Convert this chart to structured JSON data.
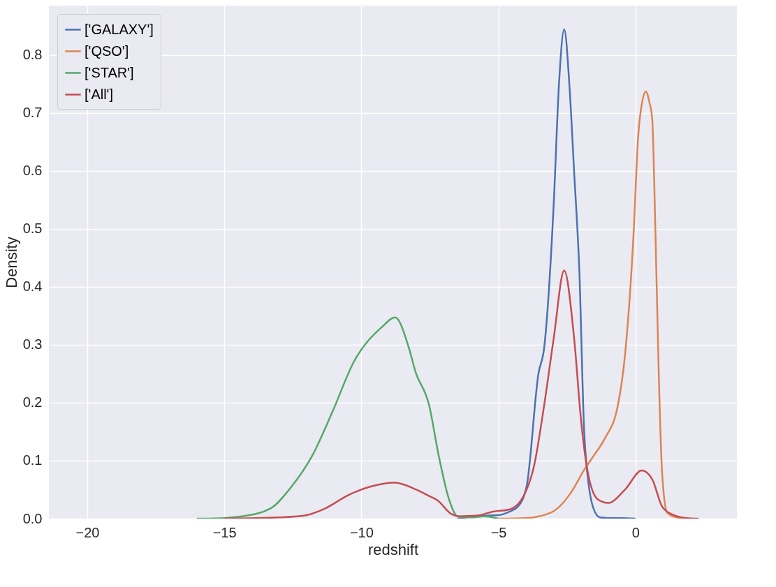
{
  "chart_data": {
    "type": "line",
    "xlabel": "redshift",
    "ylabel": "Density",
    "xlim": [
      -21.4,
      3.7
    ],
    "ylim": [
      0,
      0.885
    ],
    "xticks": [
      {
        "value": -20,
        "label": "−20"
      },
      {
        "value": -15,
        "label": "−15"
      },
      {
        "value": -10,
        "label": "−10"
      },
      {
        "value": -5,
        "label": "−5"
      },
      0
    ],
    "yticks": [
      {
        "value": 0,
        "label": "0.0"
      },
      0.1,
      0.2,
      0.3,
      0.4,
      0.5,
      0.6,
      0.7,
      0.8
    ],
    "grid": true,
    "legend": "top left",
    "marker": "none",
    "line_style": "solid",
    "series": [
      {
        "name": "['GALAXY']",
        "color": "#4c72b0",
        "x": [
          -6.5,
          -6.0,
          -5.5,
          -5.0,
          -4.6,
          -4.3,
          -3.97,
          -3.54,
          -3.33,
          -2.98,
          -2.79,
          -2.6,
          -2.4,
          -2.24,
          -2.05,
          -1.86,
          -1.55,
          -1.3,
          -1.0,
          -0.5,
          0.0
        ],
        "values": [
          0,
          0.003,
          0.005,
          0.006,
          0.012,
          0.02,
          0.056,
          0.25,
          0.295,
          0.545,
          0.75,
          0.844,
          0.74,
          0.6,
          0.43,
          0.14,
          0.02,
          0.002,
          0.001,
          0.001,
          0
        ]
      },
      {
        "name": "['QSO']",
        "color": "#dd8452",
        "x": [
          -5.0,
          -4.0,
          -3.1,
          -2.35,
          -1.86,
          -1.5,
          -1.12,
          -0.64,
          -0.38,
          -0.07,
          0.1,
          0.25,
          0.38,
          0.5,
          0.61,
          0.73,
          0.85,
          0.97,
          1.16,
          1.5,
          2.0
        ],
        "values": [
          0,
          0.001,
          0.01,
          0.045,
          0.085,
          0.11,
          0.138,
          0.196,
          0.283,
          0.49,
          0.66,
          0.72,
          0.737,
          0.72,
          0.69,
          0.49,
          0.25,
          0.08,
          0.01,
          0.002,
          0
        ]
      },
      {
        "name": "['STAR']",
        "color": "#55a868",
        "x": [
          -16.0,
          -15.6,
          -14.35,
          -13.3,
          -12.57,
          -11.8,
          -11.04,
          -10.28,
          -9.26,
          -8.77,
          -8.27,
          -8.03,
          -7.53,
          -7.18,
          -6.8,
          -6.49,
          -6.0,
          -5.5,
          -5.0
        ],
        "values": [
          0,
          0,
          0.004,
          0.018,
          0.054,
          0.108,
          0.186,
          0.27,
          0.33,
          0.347,
          0.295,
          0.254,
          0.196,
          0.109,
          0.033,
          0.004,
          0.002,
          0.004,
          0
        ]
      },
      {
        "name": "['All']",
        "color": "#c44e52",
        "x": [
          -15.0,
          -13.0,
          -12.1,
          -11.3,
          -10.5,
          -9.68,
          -8.78,
          -8.0,
          -7.53,
          -7.21,
          -6.72,
          -6.42,
          -5.8,
          -5.2,
          -4.58,
          -4.08,
          -3.7,
          -3.33,
          -2.98,
          -2.6,
          -2.24,
          -1.98,
          -1.74,
          -1.37,
          -1.0,
          -0.38,
          0.23,
          0.61,
          0.97,
          1.35,
          1.85,
          2.3
        ],
        "values": [
          0,
          0.002,
          0.005,
          0.018,
          0.04,
          0.055,
          0.062,
          0.05,
          0.039,
          0.031,
          0.008,
          0.004,
          0.005,
          0.012,
          0.016,
          0.039,
          0.091,
          0.196,
          0.312,
          0.428,
          0.312,
          0.167,
          0.08,
          0.033,
          0.027,
          0.05,
          0.083,
          0.068,
          0.021,
          0.007,
          0.001,
          0
        ]
      }
    ]
  }
}
